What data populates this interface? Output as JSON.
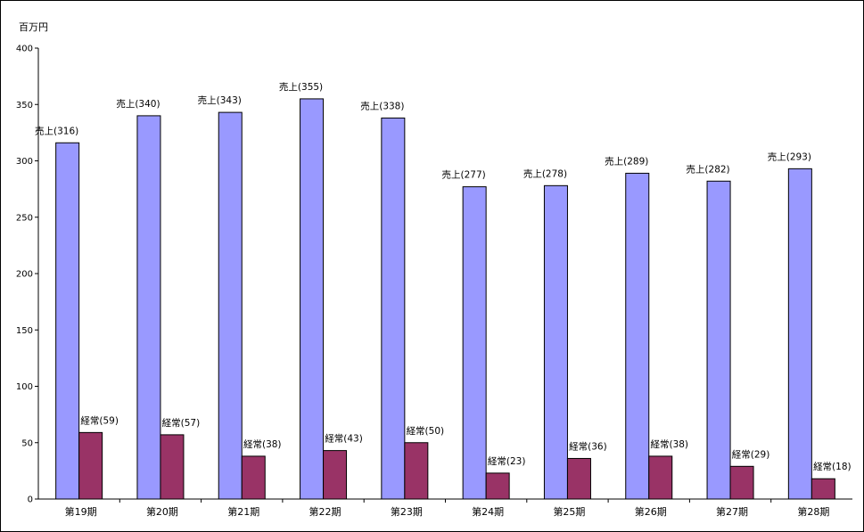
{
  "chart_data": {
    "type": "bar",
    "unit_label": "百万円",
    "categories": [
      "第19期",
      "第20期",
      "第21期",
      "第22期",
      "第23期",
      "第24期",
      "第25期",
      "第26期",
      "第27期",
      "第28期"
    ],
    "series": [
      {
        "label_prefix": "売上",
        "color": "#9999ff",
        "values": [
          316,
          340,
          343,
          355,
          338,
          277,
          278,
          289,
          282,
          293
        ]
      },
      {
        "label_prefix": "経常",
        "color": "#993366",
        "values": [
          59,
          57,
          38,
          43,
          50,
          23,
          36,
          38,
          29,
          18
        ]
      }
    ],
    "ylim": [
      0,
      400
    ],
    "yticks": [
      0,
      50,
      100,
      150,
      200,
      250,
      300,
      350,
      400
    ],
    "grid": false,
    "legend": "none"
  }
}
